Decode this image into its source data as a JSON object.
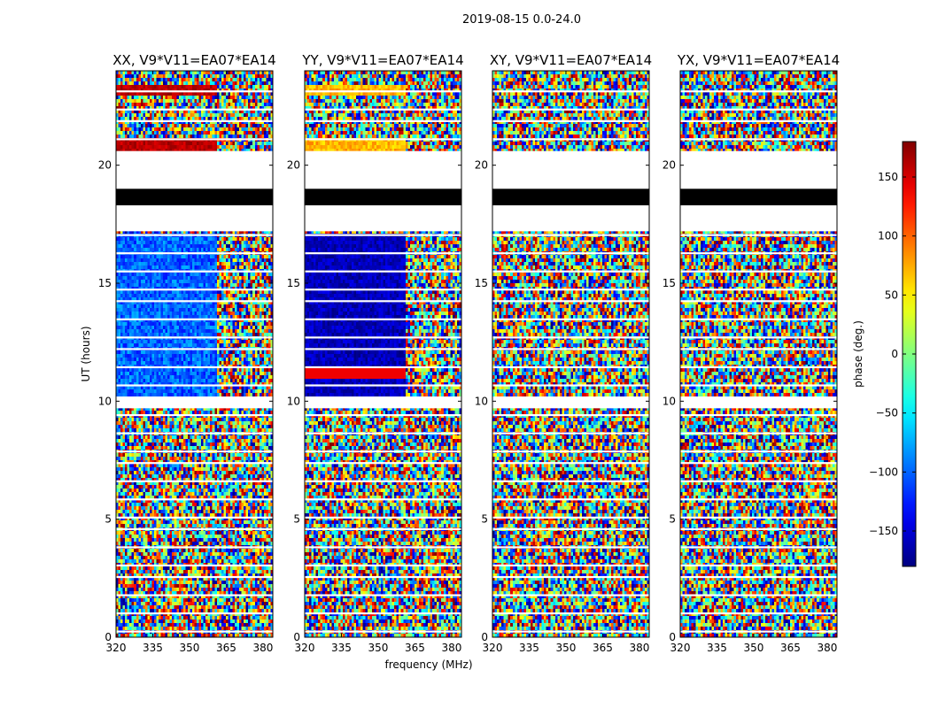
{
  "figure": {
    "suptitle": "2019-08-15 0.0-24.0",
    "xlabel": "frequency (MHz)",
    "ylabel": "UT (hours)",
    "colorbar_label": "phase (deg.)"
  },
  "chart_data": {
    "type": "heatmap",
    "xlim": [
      320,
      384
    ],
    "ylim": [
      0,
      24
    ],
    "x_ticks": [
      320,
      335,
      350,
      365,
      380
    ],
    "y_ticks": [
      0,
      5,
      10,
      15,
      20
    ],
    "colormap": "jet",
    "clim": [
      -180,
      180
    ],
    "colorbar_ticks": [
      150,
      100,
      50,
      0,
      -50,
      -100,
      -150
    ],
    "colorbar_tick_labels": [
      "150",
      "100",
      "50",
      "0",
      "−50",
      "−100",
      "−150"
    ],
    "y_tick_labels": [
      "0",
      "5",
      "10",
      "15",
      "20"
    ],
    "x_tick_labels": [
      "320",
      "335",
      "350",
      "365",
      "380"
    ],
    "panels": [
      {
        "title": "XX, V9*V11=EA07*EA14",
        "polarization": "XX"
      },
      {
        "title": "YY, V9*V11=EA07*EA14",
        "polarization": "YY"
      },
      {
        "title": "XY, V9*V11=EA07*EA14",
        "polarization": "XY"
      },
      {
        "title": "YX, V9*V11=EA07*EA14",
        "polarization": "YX"
      }
    ],
    "flagged_time_ranges_hours": [
      [
        17.2,
        20.6
      ],
      [
        9.7,
        10.2
      ]
    ],
    "blackout_time_range_hours": [
      18.3,
      19.0
    ]
  }
}
